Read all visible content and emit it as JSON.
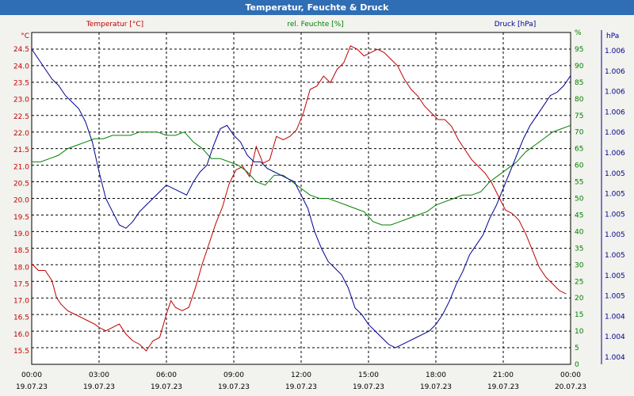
{
  "window": {
    "title": "Temperatur, Feuchte & Druck"
  },
  "colors": {
    "temp": "#c00000",
    "humid": "#008000",
    "press": "#000090",
    "grid": "#000000",
    "background": "#ffffff"
  },
  "chart_data": {
    "type": "line",
    "title": "Temperatur, Feuchte & Druck",
    "x": {
      "unit": "hours since 00:00 19.07.23",
      "range": [
        0,
        24
      ],
      "ticks": [
        {
          "h": 0,
          "time": "00:00",
          "date": "19.07.23"
        },
        {
          "h": 3,
          "time": "03:00",
          "date": "19.07.23"
        },
        {
          "h": 6,
          "time": "06:00",
          "date": "19.07.23"
        },
        {
          "h": 9,
          "time": "09:00",
          "date": "19.07.23"
        },
        {
          "h": 12,
          "time": "12:00",
          "date": "19.07.23"
        },
        {
          "h": 15,
          "time": "15:00",
          "date": "19.07.23"
        },
        {
          "h": 18,
          "time": "18:00",
          "date": "19.07.23"
        },
        {
          "h": 21,
          "time": "21:00",
          "date": "19.07.23"
        },
        {
          "h": 24,
          "time": "00:00",
          "date": "20.07.23"
        }
      ]
    },
    "axes": {
      "left": {
        "unit_label": "°C",
        "range": [
          15.1,
          25.0
        ],
        "ticks": [
          "15.5",
          "16.0",
          "16.5",
          "17.0",
          "17.5",
          "18.0",
          "18.5",
          "19.0",
          "19.5",
          "20.0",
          "20.5",
          "21.0",
          "21.5",
          "22.0",
          "22.5",
          "23.0",
          "23.5",
          "24.0",
          "24.5"
        ]
      },
      "mid": {
        "unit_label": "%",
        "range": [
          0,
          100
        ],
        "ticks": [
          "0",
          "5",
          "10",
          "15",
          "20",
          "25",
          "30",
          "35",
          "40",
          "45",
          "50",
          "55",
          "60",
          "65",
          "70",
          "75",
          "80",
          "85",
          "90",
          "95",
          "%"
        ]
      },
      "right": {
        "unit_label": "hPa",
        "ticks": [
          "1.004",
          "1.004",
          "1.004",
          "1.005",
          "1.005",
          "1.005",
          "1.005",
          "1.005",
          "1.005",
          "1.005",
          "1.006",
          "1.006",
          "1.006",
          "1.006",
          "1.006",
          "1.006"
        ]
      }
    },
    "series": [
      {
        "name": "Temperatur [°C]",
        "axis": "left",
        "color": "#c00000",
        "x": [
          0,
          0.3,
          0.6,
          0.9,
          1.1,
          1.3,
          1.6,
          1.9,
          2.2,
          2.5,
          2.8,
          3.0,
          3.3,
          3.6,
          3.9,
          4.2,
          4.5,
          4.8,
          5.1,
          5.4,
          5.7,
          6.0,
          6.2,
          6.4,
          6.7,
          7.0,
          7.3,
          7.6,
          7.9,
          8.2,
          8.5,
          8.8,
          9.1,
          9.4,
          9.7,
          10.0,
          10.3,
          10.6,
          10.9,
          11.2,
          11.5,
          11.8,
          12.1,
          12.4,
          12.7,
          13.0,
          13.3,
          13.6,
          13.9,
          14.2,
          14.5,
          14.8,
          15.1,
          15.4,
          15.7,
          16.0,
          16.3,
          16.6,
          16.9,
          17.2,
          17.5,
          17.8,
          18.1,
          18.4,
          18.7,
          19.0,
          19.3,
          19.6,
          19.9,
          20.2,
          20.5,
          20.8,
          21.1,
          21.4,
          21.7,
          22.0,
          22.3,
          22.6,
          22.9,
          23.2,
          23.5,
          23.8
        ],
        "values": [
          18.1,
          17.9,
          17.9,
          17.6,
          17.1,
          16.9,
          16.7,
          16.6,
          16.5,
          16.4,
          16.3,
          16.2,
          16.1,
          16.2,
          16.3,
          16.0,
          15.8,
          15.7,
          15.5,
          15.8,
          15.9,
          16.6,
          17.0,
          16.8,
          16.7,
          16.8,
          17.4,
          18.1,
          18.7,
          19.3,
          19.8,
          20.5,
          20.9,
          21.0,
          20.7,
          21.6,
          21.1,
          21.2,
          21.9,
          21.8,
          21.9,
          22.1,
          22.6,
          23.3,
          23.4,
          23.7,
          23.5,
          23.9,
          24.1,
          24.6,
          24.5,
          24.3,
          24.4,
          24.5,
          24.4,
          24.2,
          24.0,
          23.6,
          23.3,
          23.1,
          22.8,
          22.6,
          22.4,
          22.4,
          22.2,
          21.8,
          21.5,
          21.2,
          21.0,
          20.8,
          20.5,
          20.1,
          19.7,
          19.6,
          19.4,
          19.0,
          18.5,
          18.0,
          17.7,
          17.5,
          17.3,
          17.2
        ]
      },
      {
        "name": "rel. Feuchte [%]",
        "axis": "mid",
        "color": "#008000",
        "x": [
          0,
          0.4,
          0.8,
          1.2,
          1.6,
          2.0,
          2.4,
          2.8,
          3.2,
          3.6,
          4.0,
          4.4,
          4.8,
          5.2,
          5.6,
          6.0,
          6.4,
          6.8,
          7.2,
          7.6,
          8.0,
          8.4,
          8.8,
          9.2,
          9.6,
          10.0,
          10.4,
          10.8,
          11.2,
          11.6,
          12.0,
          12.4,
          12.8,
          13.2,
          13.6,
          14.0,
          14.4,
          14.8,
          15.2,
          15.6,
          16.0,
          16.4,
          16.8,
          17.2,
          17.6,
          18.0,
          18.4,
          18.8,
          19.2,
          19.6,
          20.0,
          20.4,
          20.8,
          21.2,
          21.6,
          22.0,
          22.4,
          22.8,
          23.2,
          23.6,
          24.0
        ],
        "values": [
          61,
          61,
          62,
          63,
          65,
          66,
          67,
          68,
          68,
          69,
          69,
          69,
          70,
          70,
          70,
          69,
          69,
          70,
          67,
          65,
          62,
          62,
          61,
          60,
          58,
          55,
          54,
          57,
          57,
          55,
          53,
          51,
          50,
          50,
          49,
          48,
          47,
          46,
          43,
          42,
          42,
          43,
          44,
          45,
          46,
          48,
          49,
          50,
          51,
          51,
          52,
          55,
          57,
          59,
          61,
          64,
          66,
          68,
          70,
          71,
          72
        ]
      },
      {
        "name": "Druck [hPa]",
        "axis": "mid",
        "color": "#000090",
        "x": [
          0,
          0.3,
          0.6,
          0.9,
          1.2,
          1.5,
          1.8,
          2.1,
          2.4,
          2.7,
          3.0,
          3.3,
          3.6,
          3.9,
          4.2,
          4.5,
          4.8,
          5.1,
          5.4,
          5.7,
          6.0,
          6.3,
          6.6,
          6.9,
          7.2,
          7.5,
          7.8,
          8.1,
          8.4,
          8.7,
          9.0,
          9.3,
          9.6,
          9.9,
          10.2,
          10.5,
          10.8,
          11.1,
          11.4,
          11.7,
          12.0,
          12.3,
          12.6,
          12.9,
          13.2,
          13.5,
          13.8,
          14.1,
          14.4,
          14.7,
          15.0,
          15.3,
          15.6,
          15.9,
          16.2,
          16.5,
          16.8,
          17.1,
          17.4,
          17.7,
          18.0,
          18.3,
          18.6,
          18.9,
          19.2,
          19.5,
          19.8,
          20.1,
          20.4,
          20.7,
          21.0,
          21.3,
          21.6,
          21.9,
          22.2,
          22.5,
          22.8,
          23.1,
          23.4,
          23.7,
          24.0
        ],
        "values": [
          95,
          92,
          89,
          86,
          84,
          81,
          79,
          77,
          73,
          67,
          58,
          50,
          46,
          42,
          41,
          43,
          46,
          48,
          50,
          52,
          54,
          53,
          52,
          51,
          55,
          58,
          60,
          66,
          71,
          72,
          69,
          67,
          63,
          61,
          61,
          59,
          58,
          57,
          56,
          55,
          51,
          47,
          40,
          35,
          31,
          29,
          27,
          23,
          17,
          15,
          12,
          10,
          8,
          6,
          5,
          6,
          7,
          8,
          9,
          10,
          12,
          15,
          19,
          24,
          28,
          33,
          36,
          39,
          44,
          48,
          53,
          58,
          63,
          68,
          72,
          75,
          78,
          81,
          82,
          84,
          87
        ]
      }
    ]
  },
  "legend": {
    "temp": "Temperatur [°C]",
    "humid": "rel. Feuchte [%]",
    "press": "Druck [hPa]"
  }
}
